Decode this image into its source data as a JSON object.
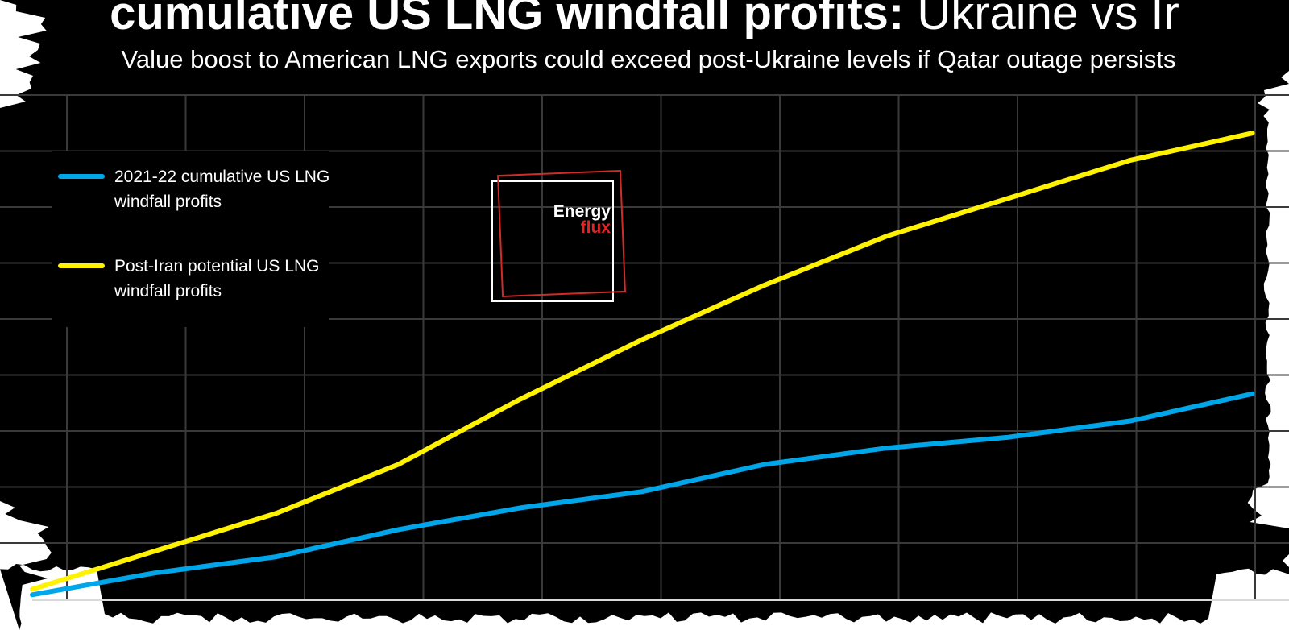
{
  "header": {
    "title_bold": "cumulative US LNG windfall profits:",
    "title_light": "Ukraine vs Ir",
    "subtitle": "Value boost to American LNG exports could exceed post-Ukraine levels if Qatar outage persists"
  },
  "logo": {
    "word1": "Energy",
    "word2": "flux"
  },
  "colors": {
    "background": "#000000",
    "grid": "#3a3a3a",
    "ukraine_series": "#00a6ea",
    "iran_series": "#fff200",
    "logo_red": "#d42a2a"
  },
  "chart_data": {
    "type": "line",
    "title": "",
    "xlabel": "",
    "ylabel": "",
    "grid": true,
    "legend_position": "top-left",
    "x": [
      0,
      1,
      2,
      3,
      4,
      5,
      6,
      7,
      8,
      9,
      10
    ],
    "xlim": [
      0,
      10.3
    ],
    "ylim": [
      0,
      9.3
    ],
    "series": [
      {
        "name": "2021-22 cumulative US LNG windfall profits",
        "color": "#00a6ea",
        "values": [
          0.1,
          0.5,
          0.8,
          1.3,
          1.7,
          2.0,
          2.5,
          2.8,
          3.0,
          3.3,
          3.8
        ]
      },
      {
        "name": "Post-Iran potential US LNG windfall profits",
        "color": "#fff200",
        "values": [
          0.2,
          0.9,
          1.6,
          2.5,
          3.7,
          4.8,
          5.8,
          6.7,
          7.4,
          8.1,
          8.6
        ]
      }
    ]
  }
}
